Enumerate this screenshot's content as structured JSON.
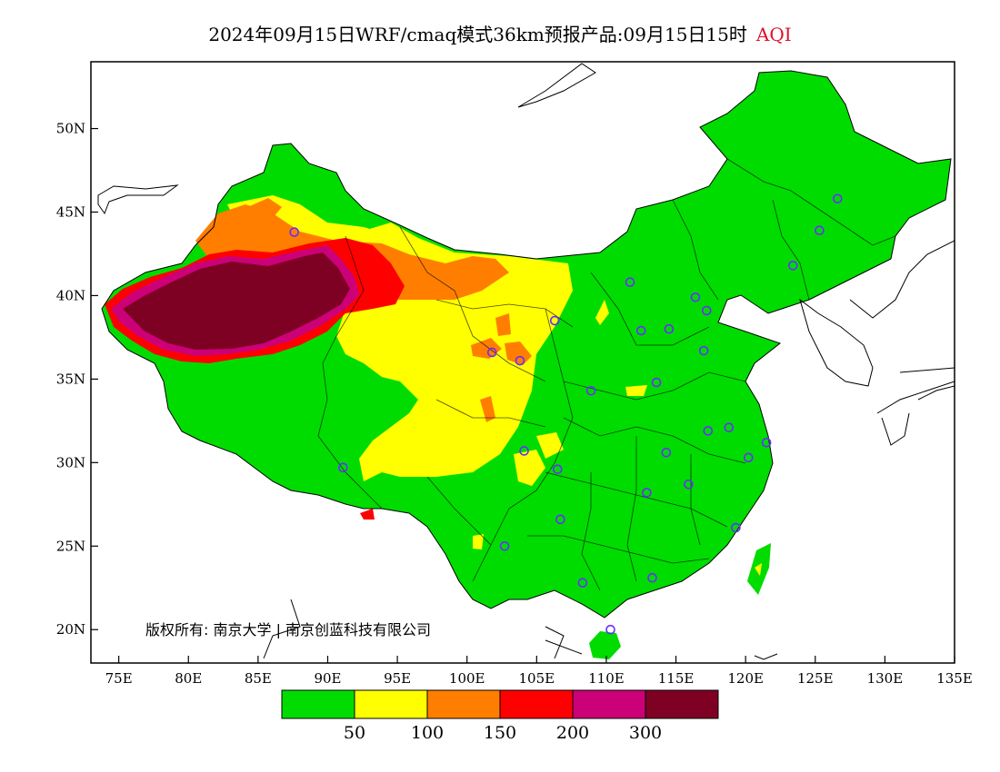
{
  "title": {
    "main": "2024年09月15日WRF/cmaq模式36km预报产品:09月15日15时",
    "variable": "AQI"
  },
  "axes": {
    "lat_labels": [
      "50N",
      "45N",
      "40N",
      "35N",
      "30N",
      "25N",
      "20N"
    ],
    "lon_labels": [
      "75E",
      "80E",
      "85E",
      "90E",
      "95E",
      "100E",
      "105E",
      "110E",
      "115E",
      "120E",
      "125E",
      "130E",
      "135E"
    ],
    "lon_range": [
      73,
      135
    ],
    "lat_range": [
      18,
      54
    ]
  },
  "colorbar": {
    "colors": [
      "#00dc00",
      "#ffff00",
      "#ff7e00",
      "#ff0000",
      "#cc0077",
      "#7e0023"
    ],
    "labels": [
      "50",
      "100",
      "150",
      "200",
      "300"
    ]
  },
  "copyright": "版权所有: 南京大学 | 南京创蓝科技有限公司",
  "colors": {
    "good": "#00dc00",
    "moderate": "#ffff00",
    "sensitive": "#ff7e00",
    "unhealthy": "#ff0000",
    "very_unhealthy": "#cc0077",
    "hazardous": "#7e0023",
    "station_marker": "#6a2cff"
  },
  "stations": [
    {
      "lon": 87.6,
      "lat": 43.8
    },
    {
      "lon": 91.1,
      "lat": 29.7
    },
    {
      "lon": 101.8,
      "lat": 36.6
    },
    {
      "lon": 103.8,
      "lat": 36.1
    },
    {
      "lon": 106.3,
      "lat": 38.5
    },
    {
      "lon": 104.1,
      "lat": 30.7
    },
    {
      "lon": 106.5,
      "lat": 29.6
    },
    {
      "lon": 106.7,
      "lat": 26.6
    },
    {
      "lon": 102.7,
      "lat": 25.0
    },
    {
      "lon": 108.3,
      "lat": 22.8
    },
    {
      "lon": 110.3,
      "lat": 20.0
    },
    {
      "lon": 113.3,
      "lat": 23.1
    },
    {
      "lon": 108.9,
      "lat": 34.3
    },
    {
      "lon": 111.7,
      "lat": 40.8
    },
    {
      "lon": 112.5,
      "lat": 37.9
    },
    {
      "lon": 114.5,
      "lat": 38.0
    },
    {
      "lon": 116.4,
      "lat": 39.9
    },
    {
      "lon": 117.2,
      "lat": 39.1
    },
    {
      "lon": 117.0,
      "lat": 36.7
    },
    {
      "lon": 113.6,
      "lat": 34.8
    },
    {
      "lon": 114.3,
      "lat": 30.6
    },
    {
      "lon": 112.9,
      "lat": 28.2
    },
    {
      "lon": 115.9,
      "lat": 28.7
    },
    {
      "lon": 117.3,
      "lat": 31.9
    },
    {
      "lon": 118.8,
      "lat": 32.1
    },
    {
      "lon": 120.2,
      "lat": 30.3
    },
    {
      "lon": 121.5,
      "lat": 31.2
    },
    {
      "lon": 119.3,
      "lat": 26.1
    },
    {
      "lon": 123.4,
      "lat": 41.8
    },
    {
      "lon": 125.3,
      "lat": 43.9
    },
    {
      "lon": 126.6,
      "lat": 45.8
    }
  ]
}
